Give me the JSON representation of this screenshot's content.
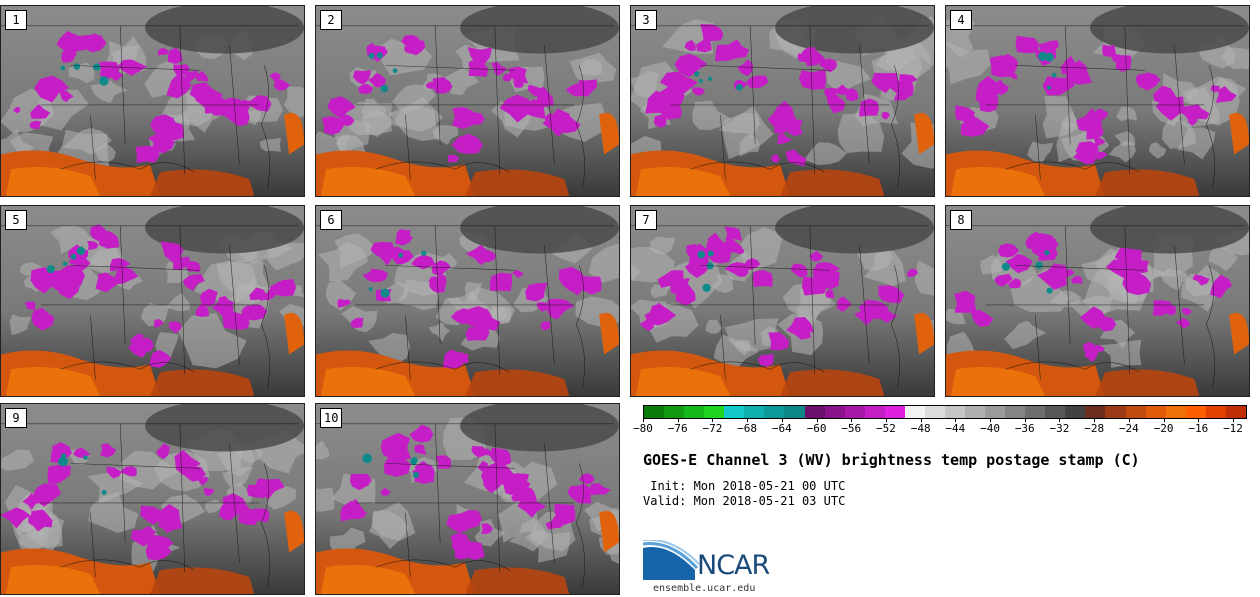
{
  "panels": [
    {
      "label": "1"
    },
    {
      "label": "2"
    },
    {
      "label": "3"
    },
    {
      "label": "4"
    },
    {
      "label": "5"
    },
    {
      "label": "6"
    },
    {
      "label": "7"
    },
    {
      "label": "8"
    },
    {
      "label": "9"
    },
    {
      "label": "10"
    }
  ],
  "colorbar": {
    "colors": [
      "#0a7a0a",
      "#0f9a12",
      "#14b81a",
      "#1ed61f",
      "#12c8c8",
      "#10b0b0",
      "#0f9a9a",
      "#0c8686",
      "#6a0f6a",
      "#8a128a",
      "#a818a8",
      "#c31ec3",
      "#e020e0",
      "#f2f2f2",
      "#dcdcdc",
      "#c6c6c6",
      "#b0b0b0",
      "#9a9a9a",
      "#848484",
      "#6e6e6e",
      "#585858",
      "#424242",
      "#6b2e1e",
      "#9a3a16",
      "#c24a10",
      "#e05a0a",
      "#f0700a",
      "#ff5e00",
      "#e04000",
      "#c02e08"
    ],
    "ticks": [
      "−80",
      "−76",
      "−72",
      "−68",
      "−64",
      "−60",
      "−56",
      "−52",
      "−48",
      "−44",
      "−40",
      "−36",
      "−32",
      "−28",
      "−24",
      "−20",
      "−16",
      "−12"
    ]
  },
  "title": "GOES-E Channel 3 (WV) brightness temp postage stamp (C)",
  "init": " Init: Mon 2018-05-21 00 UTC",
  "valid": "Valid: Mon 2018-05-21 03 UTC",
  "logo": {
    "name": "NCAR",
    "url": "ensemble.ucar.edu"
  }
}
